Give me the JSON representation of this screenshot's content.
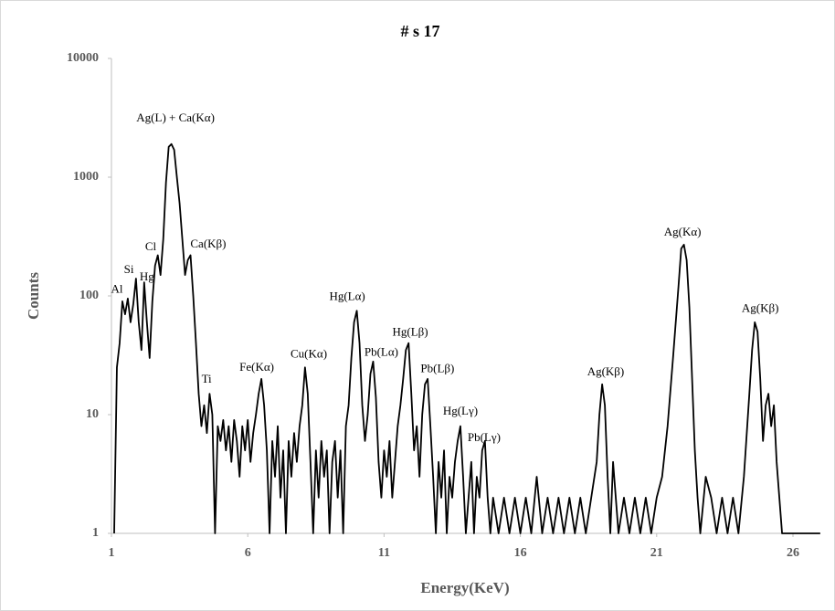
{
  "chart_data": {
    "type": "line",
    "title": "# s 17",
    "xlabel": "Energy(KeV)",
    "ylabel": "Counts",
    "xlim": [
      1,
      27
    ],
    "xticks": [
      1,
      6,
      11,
      16,
      21,
      26
    ],
    "ylim": [
      1,
      10000
    ],
    "yticks": [
      1,
      10,
      100,
      1000,
      10000
    ],
    "ylog": true,
    "grid": false,
    "series": [
      {
        "color": "#000000",
        "x": [
          1.1,
          1.2,
          1.3,
          1.4,
          1.5,
          1.6,
          1.7,
          1.8,
          1.9,
          2.0,
          2.1,
          2.2,
          2.3,
          2.4,
          2.5,
          2.6,
          2.7,
          2.8,
          2.9,
          3.0,
          3.1,
          3.2,
          3.3,
          3.4,
          3.5,
          3.6,
          3.7,
          3.8,
          3.9,
          4.0,
          4.1,
          4.2,
          4.3,
          4.4,
          4.5,
          4.6,
          4.7,
          4.8,
          4.9,
          5.0,
          5.1,
          5.2,
          5.3,
          5.4,
          5.5,
          5.6,
          5.7,
          5.8,
          5.9,
          6.0,
          6.1,
          6.2,
          6.3,
          6.4,
          6.5,
          6.6,
          6.7,
          6.8,
          6.9,
          7.0,
          7.1,
          7.2,
          7.3,
          7.4,
          7.5,
          7.6,
          7.7,
          7.8,
          7.9,
          8.0,
          8.1,
          8.2,
          8.3,
          8.4,
          8.5,
          8.6,
          8.7,
          8.8,
          8.9,
          9.0,
          9.1,
          9.2,
          9.3,
          9.4,
          9.5,
          9.6,
          9.7,
          9.8,
          9.9,
          10.0,
          10.1,
          10.2,
          10.3,
          10.4,
          10.5,
          10.6,
          10.7,
          10.8,
          10.9,
          11.0,
          11.1,
          11.2,
          11.3,
          11.4,
          11.5,
          11.6,
          11.7,
          11.8,
          11.9,
          12.0,
          12.1,
          12.2,
          12.3,
          12.4,
          12.5,
          12.6,
          12.7,
          12.8,
          12.9,
          13.0,
          13.1,
          13.2,
          13.3,
          13.4,
          13.5,
          13.6,
          13.7,
          13.8,
          13.9,
          14.0,
          14.1,
          14.2,
          14.3,
          14.4,
          14.5,
          14.6,
          14.7,
          14.8,
          14.9,
          15.0,
          15.2,
          15.4,
          15.6,
          15.8,
          16.0,
          16.2,
          16.4,
          16.6,
          16.8,
          17.0,
          17.2,
          17.4,
          17.6,
          17.8,
          18.0,
          18.2,
          18.4,
          18.6,
          18.8,
          18.9,
          19.0,
          19.1,
          19.2,
          19.3,
          19.4,
          19.5,
          19.6,
          19.8,
          20.0,
          20.2,
          20.4,
          20.6,
          20.8,
          21.0,
          21.2,
          21.4,
          21.6,
          21.8,
          21.9,
          22.0,
          22.1,
          22.2,
          22.3,
          22.4,
          22.5,
          22.6,
          22.8,
          23.0,
          23.2,
          23.4,
          23.6,
          23.8,
          24.0,
          24.2,
          24.4,
          24.5,
          24.6,
          24.7,
          24.8,
          24.9,
          25.0,
          25.1,
          25.2,
          25.3,
          25.4,
          25.5,
          25.6,
          27.0
        ],
        "values": [
          1,
          25,
          40,
          90,
          70,
          95,
          60,
          85,
          140,
          60,
          35,
          130,
          60,
          30,
          90,
          180,
          220,
          150,
          300,
          900,
          1800,
          1900,
          1700,
          1000,
          600,
          300,
          150,
          200,
          220,
          100,
          40,
          15,
          8,
          12,
          7,
          15,
          10,
          1,
          8,
          6,
          9,
          5,
          8,
          4,
          9,
          6,
          3,
          8,
          5,
          9,
          4,
          7,
          10,
          15,
          20,
          12,
          5,
          1,
          6,
          3,
          8,
          2,
          5,
          1,
          6,
          3,
          7,
          4,
          8,
          12,
          25,
          15,
          4,
          1,
          5,
          2,
          6,
          3,
          5,
          1,
          4,
          6,
          2,
          5,
          1,
          8,
          12,
          30,
          60,
          75,
          40,
          12,
          6,
          10,
          22,
          28,
          14,
          4,
          2,
          5,
          3,
          6,
          2,
          4,
          8,
          12,
          20,
          35,
          40,
          15,
          5,
          8,
          3,
          10,
          18,
          20,
          8,
          3,
          1,
          4,
          2,
          5,
          1,
          3,
          2,
          4,
          6,
          8,
          3,
          1,
          2,
          4,
          1,
          3,
          2,
          5,
          6,
          2,
          1,
          2,
          1,
          2,
          1,
          2,
          1,
          2,
          1,
          3,
          1,
          2,
          1,
          2,
          1,
          2,
          1,
          2,
          1,
          2,
          4,
          10,
          18,
          12,
          3,
          1,
          4,
          2,
          1,
          2,
          1,
          2,
          1,
          2,
          1,
          2,
          3,
          8,
          30,
          120,
          250,
          270,
          200,
          80,
          20,
          5,
          2,
          1,
          3,
          2,
          1,
          2,
          1,
          2,
          1,
          3,
          15,
          35,
          60,
          50,
          20,
          6,
          12,
          15,
          8,
          12,
          4,
          2,
          1,
          1
        ]
      }
    ],
    "annotations": [
      {
        "text": "Al",
        "x": 1.2,
        "y": 112
      },
      {
        "text": "Si",
        "x": 1.64,
        "y": 164
      },
      {
        "text": "Hg",
        "x": 2.3,
        "y": 142
      },
      {
        "text": "Cl",
        "x": 2.44,
        "y": 256
      },
      {
        "text": "Ag(L) + Ca(Kα)",
        "x": 3.35,
        "y": 3100
      },
      {
        "text": "Ca(Kβ)",
        "x": 4.55,
        "y": 270
      },
      {
        "text": "Ti",
        "x": 4.49,
        "y": 19.6
      },
      {
        "text": "Fe(Kα)",
        "x": 6.33,
        "y": 24.7
      },
      {
        "text": "Cu(Kα)",
        "x": 8.24,
        "y": 32
      },
      {
        "text": "Hg(Lα)",
        "x": 9.65,
        "y": 97
      },
      {
        "text": "Pb(Lα)",
        "x": 10.9,
        "y": 33
      },
      {
        "text": "Hg(Lβ)",
        "x": 11.96,
        "y": 49
      },
      {
        "text": "Pb(Lβ)",
        "x": 12.96,
        "y": 24
      },
      {
        "text": "Hg(Lγ)",
        "x": 13.8,
        "y": 10.5
      },
      {
        "text": "Pb(Lγ)",
        "x": 14.67,
        "y": 6.3
      },
      {
        "text": "Ag(Kβ)",
        "x": 19.13,
        "y": 22.6
      },
      {
        "text": "Ag(Kα)",
        "x": 21.95,
        "y": 339
      },
      {
        "text": "Ag(Kβ)",
        "x": 24.8,
        "y": 77
      }
    ]
  }
}
